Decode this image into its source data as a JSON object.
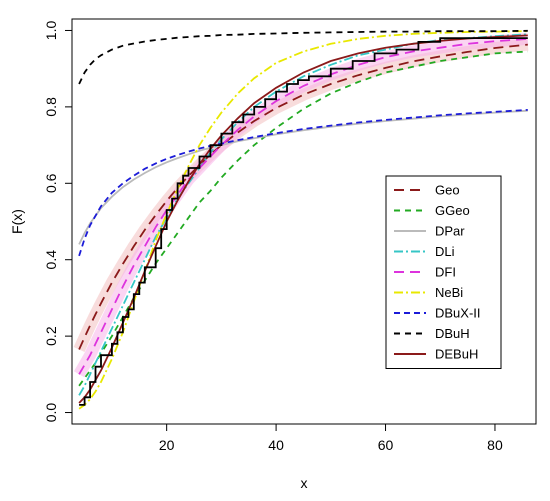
{
  "chart_data": {
    "type": "line",
    "title": "",
    "xlabel": "x",
    "ylabel": "F(x)",
    "xlim": [
      2.7,
      87.5
    ],
    "ylim": [
      -0.03,
      1.03
    ],
    "x_ticks": [
      20,
      40,
      60,
      80
    ],
    "y_ticks": [
      0.0,
      0.2,
      0.4,
      0.6,
      0.8,
      1.0
    ],
    "x_tick_labels": [
      "20",
      "40",
      "60",
      "80"
    ],
    "y_tick_labels": [
      "0.0",
      "0.2",
      "0.4",
      "0.6",
      "0.8",
      "1.0"
    ],
    "grid": false,
    "legend_position": "right",
    "empirical_cdf": {
      "color": "#000000",
      "points": [
        [
          4,
          0.02
        ],
        [
          5,
          0.04
        ],
        [
          6,
          0.08
        ],
        [
          7,
          0.12
        ],
        [
          8,
          0.15
        ],
        [
          10,
          0.18
        ],
        [
          11,
          0.21
        ],
        [
          12,
          0.25
        ],
        [
          13,
          0.27
        ],
        [
          14,
          0.31
        ],
        [
          15,
          0.34
        ],
        [
          16,
          0.38
        ],
        [
          18,
          0.43
        ],
        [
          19,
          0.48
        ],
        [
          20,
          0.53
        ],
        [
          21,
          0.56
        ],
        [
          22,
          0.6
        ],
        [
          23,
          0.62
        ],
        [
          24,
          0.64
        ],
        [
          26,
          0.67
        ],
        [
          28,
          0.7
        ],
        [
          30,
          0.73
        ],
        [
          32,
          0.76
        ],
        [
          34,
          0.78
        ],
        [
          36,
          0.8
        ],
        [
          38,
          0.82
        ],
        [
          40,
          0.84
        ],
        [
          42,
          0.86
        ],
        [
          44,
          0.87
        ],
        [
          46,
          0.88
        ],
        [
          50,
          0.9
        ],
        [
          54,
          0.92
        ],
        [
          58,
          0.94
        ],
        [
          62,
          0.95
        ],
        [
          66,
          0.97
        ],
        [
          70,
          0.98
        ],
        [
          86,
          0.98
        ]
      ]
    },
    "x": [
      4,
      5,
      6,
      7,
      8,
      10,
      12,
      14,
      16,
      18,
      20,
      22,
      24,
      26,
      28,
      30,
      33,
      36,
      40,
      45,
      50,
      55,
      60,
      65,
      70,
      75,
      80,
      86
    ],
    "series": [
      {
        "name": "Geo",
        "color": "#8b1a1a",
        "dash": "10,6",
        "values": [
          0.165,
          0.197,
          0.228,
          0.257,
          0.286,
          0.34,
          0.389,
          0.435,
          0.478,
          0.517,
          0.554,
          0.588,
          0.619,
          0.648,
          0.675,
          0.7,
          0.733,
          0.763,
          0.797,
          0.832,
          0.86,
          0.883,
          0.902,
          0.919,
          0.932,
          0.944,
          0.954,
          0.963
        ]
      },
      {
        "name": "GGeo",
        "color": "#22aa22",
        "dash": "6,5",
        "values": [
          0.07,
          0.09,
          0.11,
          0.13,
          0.155,
          0.2,
          0.25,
          0.3,
          0.345,
          0.39,
          0.43,
          0.47,
          0.51,
          0.55,
          0.58,
          0.615,
          0.66,
          0.7,
          0.745,
          0.795,
          0.835,
          0.865,
          0.89,
          0.905,
          0.92,
          0.93,
          0.94,
          0.945
        ]
      },
      {
        "name": "DPar",
        "color": "#bbbbbb",
        "dash": "",
        "values": [
          0.44,
          0.47,
          0.495,
          0.515,
          0.535,
          0.565,
          0.59,
          0.61,
          0.627,
          0.642,
          0.655,
          0.666,
          0.676,
          0.685,
          0.693,
          0.7,
          0.71,
          0.718,
          0.728,
          0.739,
          0.748,
          0.756,
          0.763,
          0.769,
          0.775,
          0.78,
          0.785,
          0.79
        ]
      },
      {
        "name": "DLi",
        "color": "#35c6c6",
        "dash": "9,3,2,3",
        "values": [
          0.045,
          0.07,
          0.1,
          0.13,
          0.16,
          0.22,
          0.28,
          0.34,
          0.4,
          0.46,
          0.51,
          0.56,
          0.6,
          0.64,
          0.68,
          0.715,
          0.76,
          0.8,
          0.84,
          0.88,
          0.91,
          0.935,
          0.95,
          0.965,
          0.975,
          0.98,
          0.985,
          0.99
        ]
      },
      {
        "name": "DFI",
        "color": "#dd33dd",
        "dash": "10,6",
        "values": [
          0.1,
          0.125,
          0.15,
          0.18,
          0.21,
          0.27,
          0.33,
          0.385,
          0.435,
          0.485,
          0.53,
          0.57,
          0.61,
          0.64,
          0.67,
          0.7,
          0.74,
          0.775,
          0.815,
          0.855,
          0.885,
          0.91,
          0.93,
          0.945,
          0.955,
          0.965,
          0.972,
          0.978
        ]
      },
      {
        "name": "NeBi",
        "color": "#e8e800",
        "dash": "9,3,2,3",
        "values": [
          0.01,
          0.02,
          0.035,
          0.055,
          0.08,
          0.14,
          0.21,
          0.29,
          0.37,
          0.45,
          0.52,
          0.585,
          0.645,
          0.7,
          0.745,
          0.785,
          0.835,
          0.875,
          0.915,
          0.945,
          0.965,
          0.978,
          0.986,
          0.991,
          0.994,
          0.996,
          0.997,
          0.998
        ]
      },
      {
        "name": "DBuX-II",
        "color": "#1b1bd8",
        "dash": "6,4",
        "values": [
          0.41,
          0.455,
          0.49,
          0.515,
          0.54,
          0.575,
          0.6,
          0.62,
          0.638,
          0.652,
          0.664,
          0.674,
          0.683,
          0.691,
          0.698,
          0.704,
          0.713,
          0.721,
          0.731,
          0.742,
          0.751,
          0.759,
          0.766,
          0.772,
          0.778,
          0.783,
          0.787,
          0.792
        ]
      },
      {
        "name": "DBuH",
        "color": "#000000",
        "dash": "6,5",
        "values": [
          0.86,
          0.89,
          0.91,
          0.925,
          0.935,
          0.95,
          0.96,
          0.966,
          0.971,
          0.975,
          0.978,
          0.981,
          0.983,
          0.985,
          0.986,
          0.988,
          0.989,
          0.991,
          0.992,
          0.994,
          0.995,
          0.996,
          0.997,
          0.997,
          0.998,
          0.998,
          0.998,
          0.999
        ]
      },
      {
        "name": "DEBuH",
        "color": "#8b1a1a",
        "dash": "",
        "values": [
          0.025,
          0.04,
          0.06,
          0.085,
          0.11,
          0.17,
          0.235,
          0.3,
          0.37,
          0.435,
          0.5,
          0.555,
          0.605,
          0.65,
          0.69,
          0.725,
          0.77,
          0.81,
          0.85,
          0.89,
          0.92,
          0.94,
          0.955,
          0.965,
          0.973,
          0.979,
          0.983,
          0.987
        ]
      }
    ]
  }
}
